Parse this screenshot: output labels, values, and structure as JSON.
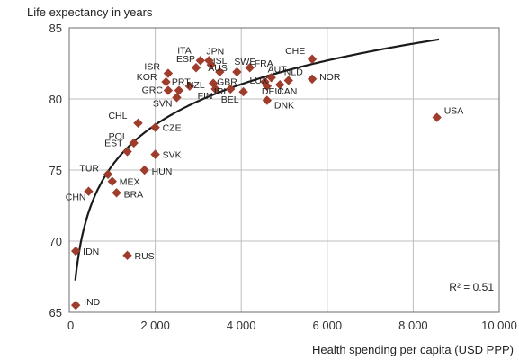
{
  "chart_data": {
    "type": "scatter",
    "title": "",
    "ylabel": "Life expectancy in years",
    "xlabel": "Health spending per capita (USD PPP)",
    "xlim": [
      0,
      10000
    ],
    "ylim": [
      65,
      85
    ],
    "xticks": [
      {
        "value": 0,
        "label": "0"
      },
      {
        "value": 2000,
        "label": "2 000"
      },
      {
        "value": 4000,
        "label": "4 000"
      },
      {
        "value": 6000,
        "label": "6 000"
      },
      {
        "value": 8000,
        "label": "8 000"
      },
      {
        "value": 10000,
        "label": "10 000"
      }
    ],
    "yticks": [
      {
        "value": 65,
        "label": "65"
      },
      {
        "value": 70,
        "label": "70"
      },
      {
        "value": 75,
        "label": "75"
      },
      {
        "value": 80,
        "label": "80"
      },
      {
        "value": 85,
        "label": "85"
      }
    ],
    "grid": true,
    "marker_color": "#9e3d2c",
    "trendline": {
      "type": "logarithmic",
      "color": "#1a1a1a",
      "r_squared_label": "R² = 0.51"
    },
    "points": [
      {
        "label": "IND",
        "x": 150,
        "y": 65.5
      },
      {
        "label": "IDN",
        "x": 150,
        "y": 69.3
      },
      {
        "label": "RUS",
        "x": 1350,
        "y": 69.0
      },
      {
        "label": "CHN",
        "x": 450,
        "y": 73.5
      },
      {
        "label": "BRA",
        "x": 1100,
        "y": 73.4
      },
      {
        "label": "MEX",
        "x": 1000,
        "y": 74.2
      },
      {
        "label": "TUR",
        "x": 900,
        "y": 74.7
      },
      {
        "label": "HUN",
        "x": 1750,
        "y": 75.0
      },
      {
        "label": "SVK",
        "x": 2000,
        "y": 76.1
      },
      {
        "label": "EST",
        "x": 1350,
        "y": 76.3
      },
      {
        "label": "POL",
        "x": 1500,
        "y": 76.9
      },
      {
        "label": "CZE",
        "x": 2000,
        "y": 78.0
      },
      {
        "label": "CHL",
        "x": 1600,
        "y": 78.3
      },
      {
        "label": "SVN",
        "x": 2500,
        "y": 80.1
      },
      {
        "label": "GRC",
        "x": 2300,
        "y": 80.6
      },
      {
        "label": "PRT",
        "x": 2550,
        "y": 80.6
      },
      {
        "label": "KOR",
        "x": 2250,
        "y": 81.2
      },
      {
        "label": "NZL",
        "x": 2800,
        "y": 80.9
      },
      {
        "label": "ISR",
        "x": 2300,
        "y": 81.8
      },
      {
        "label": "ESP",
        "x": 2950,
        "y": 82.2
      },
      {
        "label": "ITA",
        "x": 3050,
        "y": 82.7
      },
      {
        "label": "FIN",
        "x": 3400,
        "y": 80.7
      },
      {
        "label": "GBR",
        "x": 3350,
        "y": 81.1
      },
      {
        "label": "IRL",
        "x": 3750,
        "y": 80.7
      },
      {
        "label": "AUS",
        "x": 3500,
        "y": 81.9
      },
      {
        "label": "ISL",
        "x": 3300,
        "y": 82.4
      },
      {
        "label": "JPN",
        "x": 3250,
        "y": 82.7
      },
      {
        "label": "SWE",
        "x": 3900,
        "y": 81.9
      },
      {
        "label": "FRA",
        "x": 4200,
        "y": 82.2
      },
      {
        "label": "BEL",
        "x": 4050,
        "y": 80.5
      },
      {
        "label": "LUX",
        "x": 4550,
        "y": 81.2
      },
      {
        "label": "AUT",
        "x": 4700,
        "y": 81.5
      },
      {
        "label": "DEU",
        "x": 4600,
        "y": 80.9
      },
      {
        "label": "DNK",
        "x": 4600,
        "y": 79.9
      },
      {
        "label": "CAN",
        "x": 4900,
        "y": 81.0
      },
      {
        "label": "NLD",
        "x": 5100,
        "y": 81.3
      },
      {
        "label": "CHE",
        "x": 5650,
        "y": 82.8
      },
      {
        "label": "NOR",
        "x": 5650,
        "y": 81.4
      },
      {
        "label": "USA",
        "x": 8550,
        "y": 78.7
      }
    ]
  }
}
